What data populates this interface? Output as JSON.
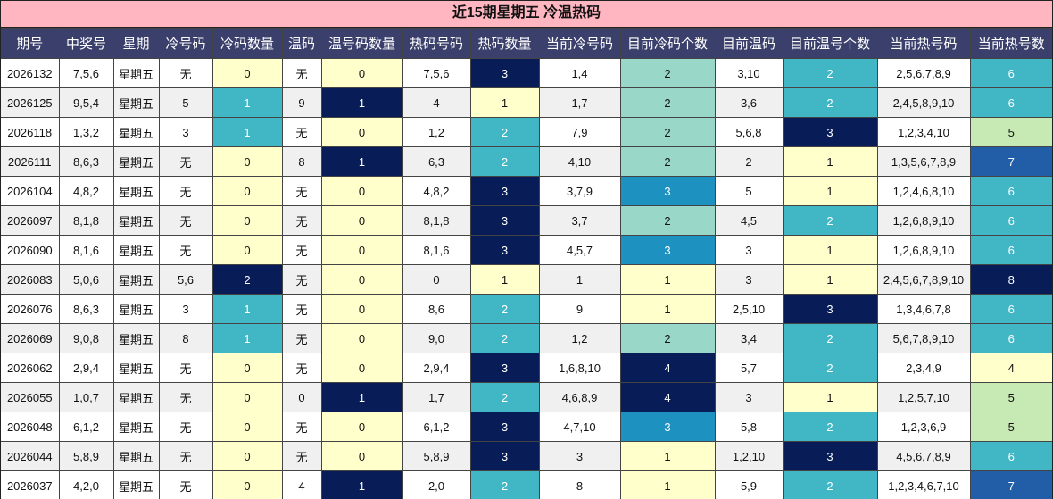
{
  "title": "近15期星期五 冷温热码",
  "headers": [
    "期号",
    "中奖号",
    "星期",
    "冷号码",
    "冷码数量",
    "温码",
    "温号码数量",
    "热码号码",
    "热码数量",
    "当前冷号码",
    "目前冷码个数",
    "目前温码",
    "目前温号个数",
    "当前热号码",
    "当前热号数"
  ],
  "rows": [
    [
      "2026132",
      "7,5,6",
      "星期五",
      "无",
      "0",
      "无",
      "0",
      "7,5,6",
      "3",
      "1,4",
      "2",
      "3,10",
      "2",
      "2,5,6,7,8,9",
      "6"
    ],
    [
      "2026125",
      "9,5,4",
      "星期五",
      "5",
      "1",
      "9",
      "1",
      "4",
      "1",
      "1,7",
      "2",
      "3,6",
      "2",
      "2,4,5,8,9,10",
      "6"
    ],
    [
      "2026118",
      "1,3,2",
      "星期五",
      "3",
      "1",
      "无",
      "0",
      "1,2",
      "2",
      "7,9",
      "2",
      "5,6,8",
      "3",
      "1,2,3,4,10",
      "5"
    ],
    [
      "2026111",
      "8,6,3",
      "星期五",
      "无",
      "0",
      "8",
      "1",
      "6,3",
      "2",
      "4,10",
      "2",
      "2",
      "1",
      "1,3,5,6,7,8,9",
      "7"
    ],
    [
      "2026104",
      "4,8,2",
      "星期五",
      "无",
      "0",
      "无",
      "0",
      "4,8,2",
      "3",
      "3,7,9",
      "3",
      "5",
      "1",
      "1,2,4,6,8,10",
      "6"
    ],
    [
      "2026097",
      "8,1,8",
      "星期五",
      "无",
      "0",
      "无",
      "0",
      "8,1,8",
      "3",
      "3,7",
      "2",
      "4,5",
      "2",
      "1,2,6,8,9,10",
      "6"
    ],
    [
      "2026090",
      "8,1,6",
      "星期五",
      "无",
      "0",
      "无",
      "0",
      "8,1,6",
      "3",
      "4,5,7",
      "3",
      "3",
      "1",
      "1,2,6,8,9,10",
      "6"
    ],
    [
      "2026083",
      "5,0,6",
      "星期五",
      "5,6",
      "2",
      "无",
      "0",
      "0",
      "1",
      "1",
      "1",
      "3",
      "1",
      "2,4,5,6,7,8,9,10",
      "8"
    ],
    [
      "2026076",
      "8,6,3",
      "星期五",
      "3",
      "1",
      "无",
      "0",
      "8,6",
      "2",
      "9",
      "1",
      "2,5,10",
      "3",
      "1,3,4,6,7,8",
      "6"
    ],
    [
      "2026069",
      "9,0,8",
      "星期五",
      "8",
      "1",
      "无",
      "0",
      "9,0",
      "2",
      "1,2",
      "2",
      "3,4",
      "2",
      "5,6,7,8,9,10",
      "6"
    ],
    [
      "2026062",
      "2,9,4",
      "星期五",
      "无",
      "0",
      "无",
      "0",
      "2,9,4",
      "3",
      "1,6,8,10",
      "4",
      "5,7",
      "2",
      "2,3,4,9",
      "4"
    ],
    [
      "2026055",
      "1,0,7",
      "星期五",
      "无",
      "0",
      "0",
      "1",
      "1,7",
      "2",
      "4,6,8,9",
      "4",
      "3",
      "1",
      "1,2,5,7,10",
      "5"
    ],
    [
      "2026048",
      "6,1,2",
      "星期五",
      "无",
      "0",
      "无",
      "0",
      "6,1,2",
      "3",
      "4,7,10",
      "3",
      "5,8",
      "2",
      "1,2,3,6,9",
      "5"
    ],
    [
      "2026044",
      "5,8,9",
      "星期五",
      "无",
      "0",
      "无",
      "0",
      "5,8,9",
      "3",
      "3",
      "1",
      "1,2,10",
      "3",
      "4,5,6,7,8,9",
      "6"
    ],
    [
      "2026037",
      "4,2,0",
      "星期五",
      "无",
      "0",
      "4",
      "1",
      "2,0",
      "2",
      "8",
      "1",
      "5,9",
      "2",
      "1,2,3,4,6,7,10",
      "7"
    ]
  ],
  "colors": {
    "title_bg": "#ffb6c1",
    "header_bg": "#3a3f6b",
    "scale": [
      "#ffffcc",
      "#c7e9b4",
      "#99d8c9",
      "#41b6c4",
      "#1d91c0",
      "#225ea8",
      "#081d58"
    ]
  }
}
